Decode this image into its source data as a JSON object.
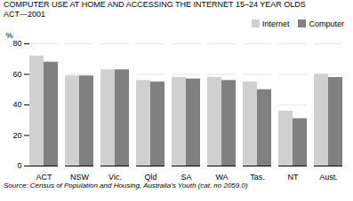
{
  "chart_data": {
    "type": "bar",
    "title": "COMPUTER USE AT HOME AND ACCESSING THE INTERNET 15–24 YEAR OLDS",
    "subtitle": "ACT—2001",
    "caption": "Source: Census of Population and Housing, Australia's Youth (cat.  no 2059.0)",
    "ylabel": "%",
    "categories": [
      "ACT",
      "NSW",
      "Vic.",
      "Qld",
      "SA",
      "WA",
      "Tas.",
      "NT",
      "Aust."
    ],
    "series": [
      {
        "name": "Internet",
        "color": "#d0d0d0",
        "values": [
          72,
          59,
          63,
          56,
          58,
          58,
          55,
          36,
          60
        ]
      },
      {
        "name": "Computer",
        "color": "#808080",
        "values": [
          68,
          59,
          63,
          55,
          57,
          56,
          50,
          31,
          58
        ]
      }
    ],
    "ylim": [
      0,
      80
    ],
    "yticks": [
      0,
      20,
      40,
      60,
      80
    ],
    "grid": true,
    "legend": "upper right"
  }
}
